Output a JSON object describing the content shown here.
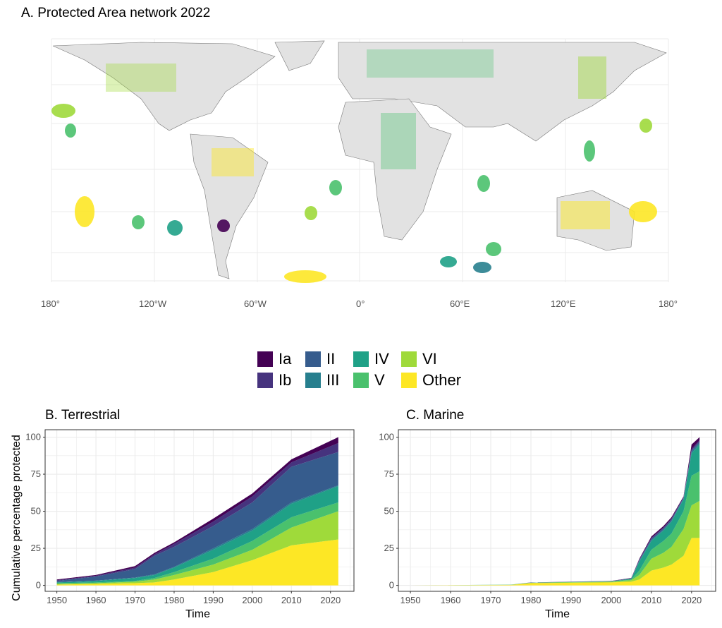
{
  "map": {
    "title": "A. Protected Area network 2022",
    "x_ticks": [
      "180°",
      "120°W",
      "60°W",
      "0°",
      "60°E",
      "120°E",
      "180°"
    ]
  },
  "legend": {
    "items": [
      {
        "label": "Ia",
        "color": "#440154"
      },
      {
        "label": "Ib",
        "color": "#46337E"
      },
      {
        "label": "II",
        "color": "#365C8D"
      },
      {
        "label": "III",
        "color": "#277F8E"
      },
      {
        "label": "IV",
        "color": "#1FA187"
      },
      {
        "label": "V",
        "color": "#4AC16D"
      },
      {
        "label": "VI",
        "color": "#9FDA3A"
      },
      {
        "label": "Other",
        "color": "#FDE725"
      }
    ]
  },
  "chart_data": [
    {
      "type": "area",
      "stacked": true,
      "title": "B. Terrestrial",
      "xlabel": "Time",
      "ylabel": "Cumulative percentage protected",
      "xlim": [
        1947,
        2026
      ],
      "ylim": [
        -4,
        105
      ],
      "x_ticks": [
        "1950",
        "1960",
        "1970",
        "1980",
        "1990",
        "2000",
        "2010",
        "2020"
      ],
      "y_ticks": [
        "0",
        "25",
        "50",
        "75",
        "100"
      ],
      "x": [
        1950,
        1960,
        1970,
        1975,
        1980,
        1990,
        2000,
        2010,
        2022
      ],
      "series": [
        {
          "name": "Other",
          "values": [
            0.5,
            1,
            1.5,
            2,
            4,
            9,
            17,
            27,
            31
          ]
        },
        {
          "name": "VI",
          "values": [
            0.5,
            0.5,
            1,
            2,
            3,
            5,
            7,
            12,
            19
          ]
        },
        {
          "name": "V",
          "values": [
            0.5,
            0.5,
            0.5,
            1,
            2,
            4,
            6,
            7,
            6
          ]
        },
        {
          "name": "IV",
          "values": [
            0.5,
            1,
            2,
            2,
            3,
            6,
            7,
            9,
            11
          ]
        },
        {
          "name": "III",
          "values": [
            0.2,
            0.2,
            0.3,
            0.5,
            0.5,
            1,
            1,
            1,
            0.5
          ]
        },
        {
          "name": "II",
          "values": [
            0.8,
            2.8,
            5.7,
            12.5,
            13.5,
            15,
            18,
            24,
            22.5
          ]
        },
        {
          "name": "Ib",
          "values": [
            0.5,
            0.5,
            1,
            1,
            2,
            3,
            4,
            3,
            6
          ]
        },
        {
          "name": "Ia",
          "values": [
            0.5,
            0.5,
            1,
            1,
            1,
            2,
            2,
            2,
            4
          ]
        }
      ]
    },
    {
      "type": "area",
      "stacked": true,
      "title": "C. Marine",
      "xlabel": "Time",
      "ylabel": "",
      "xlim": [
        1947,
        2026
      ],
      "ylim": [
        -4,
        105
      ],
      "x_ticks": [
        "1950",
        "1960",
        "1970",
        "1980",
        "1990",
        "2000",
        "2010",
        "2020"
      ],
      "y_ticks": [
        "0",
        "25",
        "50",
        "75",
        "100"
      ],
      "x": [
        1950,
        1975,
        1980,
        2000,
        2005,
        2007,
        2010,
        2013,
        2015,
        2018,
        2020,
        2022
      ],
      "series": [
        {
          "name": "Other",
          "values": [
            0,
            0.3,
            1.5,
            2,
            2.5,
            4,
            10,
            12,
            14,
            20,
            32,
            32
          ]
        },
        {
          "name": "VI",
          "values": [
            0,
            0.1,
            0.2,
            0.4,
            1,
            3,
            8,
            10,
            12,
            18,
            22,
            25
          ]
        },
        {
          "name": "V",
          "values": [
            0,
            0.05,
            0.1,
            0.2,
            0.5,
            3,
            6,
            8,
            9,
            12,
            20,
            20
          ]
        },
        {
          "name": "IV",
          "values": [
            0,
            0.05,
            0.1,
            0.2,
            0.5,
            6,
            6,
            7,
            8,
            8,
            15,
            18
          ]
        },
        {
          "name": "III",
          "values": [
            0,
            0,
            0,
            0,
            0,
            0.5,
            0.5,
            0.5,
            0.5,
            0.5,
            1,
            1
          ]
        },
        {
          "name": "II",
          "values": [
            0,
            0,
            0.05,
            0.1,
            0.2,
            0.5,
            1,
            1,
            1,
            0.5,
            1,
            1
          ]
        },
        {
          "name": "Ib",
          "values": [
            0,
            0,
            0,
            0,
            0,
            0.5,
            0.5,
            0.5,
            0.5,
            0.5,
            1,
            1
          ]
        },
        {
          "name": "Ia",
          "values": [
            0,
            0,
            0.05,
            0.1,
            0.3,
            0.5,
            1,
            1,
            1,
            0.5,
            3,
            2
          ]
        }
      ]
    }
  ]
}
